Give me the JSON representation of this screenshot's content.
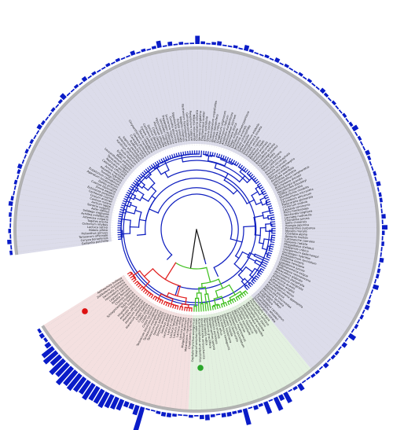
{
  "figure": {
    "type": "circular-phylogenetic-tree",
    "leaf_count": 200,
    "gap_start_deg": 238,
    "gap_end_deg": 262
  },
  "colors": {
    "clade_blue": "#1020c0",
    "clade_green": "#40c020",
    "clade_red": "#e02020",
    "root_branch": "#111111",
    "sector_blue": "#dcdcea",
    "sector_green": "#e3f1e0",
    "sector_pink": "#f4e0e0",
    "ring": "#9a9a9a",
    "bars": "#0a1cc8",
    "marker_green": "#2aa62a",
    "marker_red": "#dd1111"
  },
  "clades": [
    {
      "name": "blue",
      "leaves": 142
    },
    {
      "name": "green",
      "leaves": 25
    },
    {
      "name": "red",
      "leaves": 33
    }
  ],
  "markers": [
    {
      "clade": "green",
      "color_key": "marker_green"
    },
    {
      "clade": "red",
      "color_key": "marker_red"
    }
  ],
  "bar_values": [
    2,
    1,
    3,
    1,
    2,
    1,
    1,
    2,
    1,
    3,
    2,
    1,
    1,
    2,
    1,
    2,
    3,
    1,
    1,
    2,
    1,
    2,
    1,
    1,
    3,
    2,
    1,
    1,
    2,
    1,
    2,
    4,
    1,
    1,
    2,
    1,
    3,
    1,
    2,
    1,
    1,
    2,
    1,
    2,
    1,
    1,
    3,
    1,
    2,
    1,
    2,
    5,
    1,
    3,
    1,
    2,
    1,
    1,
    6,
    2,
    1,
    2,
    3,
    1,
    1,
    2,
    1,
    4,
    2,
    1,
    1,
    2,
    1,
    3,
    1,
    2,
    1,
    1,
    2,
    1,
    2,
    1,
    1,
    3,
    2,
    1,
    2,
    1,
    1,
    2,
    1,
    2,
    4,
    1,
    2,
    1,
    1,
    3,
    2,
    1,
    1,
    2,
    1,
    3,
    1,
    2,
    2,
    1,
    1,
    3,
    1,
    4,
    2,
    1,
    2,
    1,
    1,
    3,
    1,
    2,
    2,
    1,
    4,
    1,
    1,
    2,
    3,
    1,
    2,
    1,
    2,
    1,
    5,
    1,
    3,
    1,
    2,
    2,
    1,
    3,
    1,
    2,
    2,
    1,
    1,
    5,
    2,
    1,
    8,
    4,
    10,
    1,
    9,
    2,
    3,
    1,
    12,
    2,
    2,
    3,
    3,
    1,
    2,
    4,
    3,
    1,
    2,
    1,
    1,
    2,
    3,
    3,
    2,
    1,
    1,
    18,
    7,
    4,
    4,
    8,
    9,
    10,
    12,
    11,
    11,
    13,
    11,
    12,
    14,
    13,
    16,
    12,
    14,
    9,
    12,
    10,
    4,
    2,
    3,
    2
  ],
  "leaf_labels": [
    "Gaillardia pulchella",
    "Conyza bonariensis",
    "Taraxacum officinale",
    "Helianthus annuus",
    "Bidens pilosa",
    "Lactuca sativa",
    "Cichorium intybus",
    "Tagetes erecta",
    "Artemisia vulgaris",
    "Achillea millefolium",
    "Solidago virgaurea",
    "Aster alpinus",
    "Senecio vulgaris",
    "Arctium lappa",
    "Carduus nutans",
    "Cirsium arvense",
    "Centaurea cyanus",
    "Echinacea purpurea",
    "Zinnia elegans",
    "Cosmos bipinnatus",
    "Dahlia pinnata",
    "Ageratum houstonianum",
    "Eupatorium cannabinum",
    "Tussilago farfara",
    "Petasites hybridus",
    "Arnica montana",
    "Calendula officinalis",
    "Matricaria recutita",
    "Tanacetum vulgare",
    "Leucanthemum vulgare",
    "Bellis perennis",
    "Erigeron annuus",
    "Inula helenium",
    "Xanthium strumarium",
    "Ambrosia artemisiifolia",
    "Silphium perfoliatum",
    "Rudbeckia hirta",
    "Coreopsis tinctoria",
    "Gerbera jamesonii",
    "Chrysanthemum morifolium",
    "Stevia rebaudiana",
    "Cynara cardunculus",
    "Carthamus tinctorius",
    "Sonchus oleraceus",
    "Crepis capillaris",
    "Hieracium pilosella",
    "Hypochaeris radicata",
    "Leontodon hispidus",
    "Tragopogon pratensis",
    "Scorzonera hispanica",
    "Guizotia abyssinica",
    "Sigesbeckia orientalis",
    "Eclipta prostrata",
    "Wedelia chinensis",
    "Parthenium hysterophorus",
    "Galinsoga parviflora",
    "Porophyllum ruderale",
    "Mikania micrantha",
    "Chromolaena odorata",
    "Vernonia amygdalina",
    "Elephantopus scaber",
    "Emilia sonchifolia",
    "Gynura bicolor",
    "Crassocephalum crepidioides",
    "Blumea balsamifera",
    "Pluchea indica",
    "Gnaphalium uliginosum",
    "Helichrysum italicum",
    "Anaphalis margaritacea",
    "Leontopodium alpinum",
    "Antennaria dioica",
    "Filago vulgaris",
    "Santolina chamaecyparissus",
    "Anthemis arvensis",
    "Cotula coronopifolia",
    "Soliva sessilis",
    "Osteospermum ecklonis",
    "Dimorphotheca sinuata",
    "Arctotis venusta",
    "Gazania rigens",
    "Berkheya coddii",
    "Dicoma anomala",
    "Mutisia decurrens",
    "Barnadesia spinosa",
    "Chuquiraga jussieui",
    "Onoseris alata",
    "Nassauvia serpens",
    "Trixis californica",
    "Acourtia microcephala",
    "Perezia recurvata",
    "Gochnatia polymorpha",
    "Pertya scandens",
    "Ainsliaea acerifolia",
    "Leibnitzia anandria",
    "Tarchonanthus camphoratus",
    "Brachylaena discolor",
    "Oldenburgia grandis",
    "Hecastocleis shockleyi",
    "Stifftia chrysantha",
    "Wunderlichia mirabilis",
    "Gymnarrhena micrantha",
    "Corymbium africanum",
    "Platycarpha glomerata",
    "Cichorium endivia",
    "Lapsana communis",
    "Picris hieracioides",
    "Reichardia tingitana",
    "Launaea nudicaulis",
    "Chondrilla juncea",
    "Ixeris chinensis",
    "Youngia japonica",
    "Prenanthes purpurea",
    "Mycelis muralis",
    "Cicerbita alpina",
    "Aposeris foetida",
    "Catananche caerulea",
    "Hyoseris radiata",
    "Rhagadiolus stellatus",
    "Hedypnois cretica",
    "Urospermum dalechampii",
    "Geropogon hybridus",
    "Podospermum laciniatum",
    "Koelpinia linearis",
    "Epilasia hemilasia",
    "Lygodesmia juncea",
    "Stephanomeria exigua",
    "Rafinesquia neomexicana",
    "Malacothrix glabrata",
    "Atrichoseris platyphylla",
    "Glyptopleura marginata",
    "Anisocoma acaulis",
    "Calycoseris wrightii",
    "Pinaropappus roseus",
    "Marshalljohnstonia gypsophila",
    "Agoseris glauca",
    "Nothocalais troximoides",
    "Microseris laciniata",
    "Uropappus lindleyi",
    "Krigia biflora",
    "Pyrrhopappus carolinianus",
    "Chaetadelpha wheeleri",
    "Shinnersoseris rostrata",
    "Prenanthella exigua",
    "Pleiacanthus spinosus",
    "Munzothamnus blairii",
    "Tetrachaeta glandulosa",
    "Helminthotheca echioides",
    "Leontodon autumnalis",
    "Scolymus hispanicus",
    "Gundelia tournefortii",
    "Warionia saharae",
    "Hololeion maximowiczii",
    "Crepidiastrum lanceolatum",
    "Paraixeris denticulata",
    "Dubyaea hispida",
    "Soroseris hookeriana",
    "Syncalathium kawaguchii",
    "Nabalus albus",
    "Faberia sinensis",
    "Notoseris psilolepis",
    "Paraprenanthes sororia",
    "Stenoseris graciliflora",
    "Pterocypsela indica",
    "Kovalevskiella zeravschanica",
    "Acanthocephalus amplexifolius",
    "Steptorhamphus tuberosus",
    "Cephalorrhynchus soongoricus",
    "Chaetoseris lyriformis",
    "Melanoseris macrorhiza",
    "Mulgedium tataricum",
    "Lactuca serriola",
    "Lactuca virosa",
    "Lactuca saligna",
    "Lactuca tatarica",
    "Lactuca indica",
    "Lactuca perennis",
    "Sonchus asper",
    "Sonchus arvensis",
    "Sonchus palustris",
    "Taraxacum kok-saghyz",
    "Taraxacum mongolicum",
    "Taraxacum brevicorniculatum",
    "Crepis tectorum",
    "Crepis sancta",
    "Crepis pulchra",
    "Crepis foetida",
    "Hieracium umbellatum",
    "Hieracium lachenalii",
    "Pilosella officinarum",
    "Andryala integrifolia",
    "Hispidella hispanica",
    "Tolpis barbata",
    "Schlagintweitia intybacea",
    "Chorisis repens",
    "Askellia flexuosa",
    "Lagoseris sancta",
    "Heteroderis pusilla",
    "Sonchella stenoma",
    "Zollikoferia mucronata",
    "Aetheorhiza bulbosa"
  ]
}
